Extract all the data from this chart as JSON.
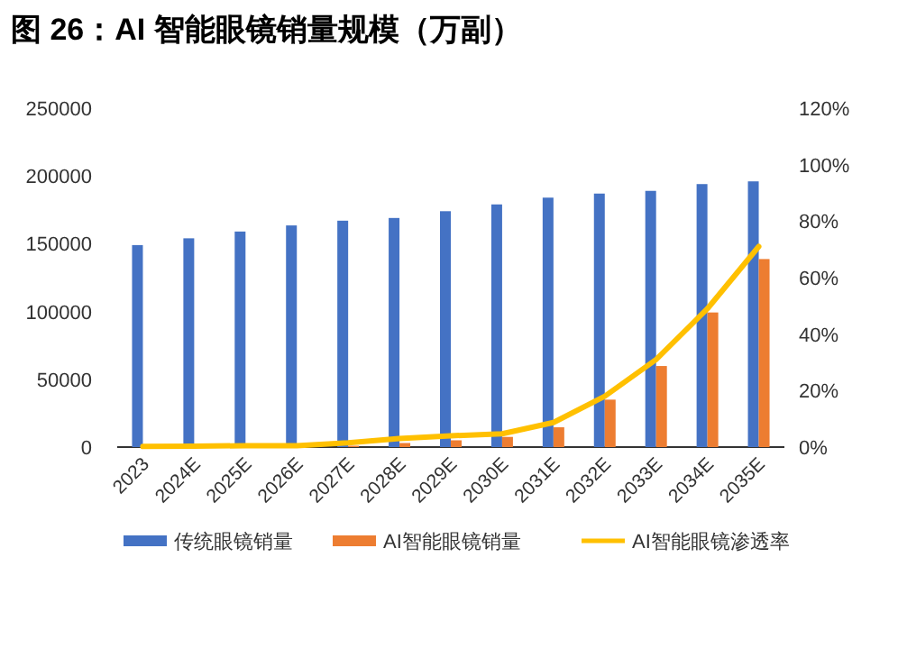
{
  "chart_data": {
    "type": "bar",
    "title": "图 26：AI 智能眼镜销量规模（万副）",
    "categories": [
      "2023",
      "2024E",
      "2025E",
      "2026E",
      "2027E",
      "2028E",
      "2029E",
      "2030E",
      "2031E",
      "2032E",
      "2033E",
      "2034E",
      "2035E"
    ],
    "series": [
      {
        "name": "传统眼镜销量",
        "color": "#4472c4",
        "values": [
          149000,
          154000,
          159000,
          163500,
          167000,
          169000,
          174000,
          179000,
          184000,
          187000,
          189000,
          194000,
          196000
        ]
      },
      {
        "name": "AI智能眼镜销量",
        "color": "#ed7d31",
        "values": [
          300,
          300,
          400,
          500,
          1000,
          3000,
          5000,
          7500,
          14600,
          35000,
          59800,
          99300,
          138700
        ]
      },
      {
        "name": "AI智能眼镜渗透率",
        "color": "#ffc000",
        "type": "line",
        "axis": "y2",
        "values": [
          0.2,
          0.3,
          0.5,
          0.5,
          1.5,
          3,
          4,
          4.7,
          8.7,
          18,
          31,
          49,
          71
        ]
      }
    ],
    "ylim": [
      0,
      250000
    ],
    "yticks": [
      0,
      50000,
      100000,
      150000,
      200000,
      250000
    ],
    "y2lim": [
      0,
      120
    ],
    "y2ticks": [
      {
        "value": 0,
        "label": "0%"
      },
      {
        "value": 20,
        "label": "20%"
      },
      {
        "value": 40,
        "label": "40%"
      },
      {
        "value": 60,
        "label": "60%"
      },
      {
        "value": 80,
        "label": "80%"
      },
      {
        "value": 100,
        "label": "100%"
      },
      {
        "value": 120,
        "label": "120%"
      }
    ],
    "legend": "bottom",
    "grid": false
  }
}
